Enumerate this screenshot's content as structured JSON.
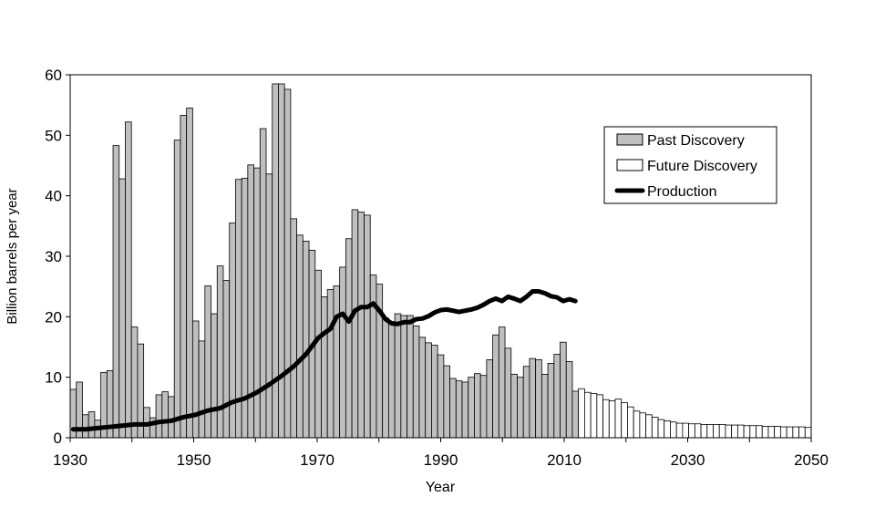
{
  "chart_data": {
    "type": "bar",
    "xlabel": "Year",
    "ylabel": "Billion barrels per year",
    "xlim": [
      1930,
      2050
    ],
    "ylim": [
      0,
      60
    ],
    "x_ticks": [
      "1930",
      "1950",
      "1970",
      "1990",
      "2010",
      "2030",
      "2050"
    ],
    "y_ticks": [
      "0",
      "10",
      "20",
      "30",
      "40",
      "50",
      "60"
    ],
    "legend_position": "top-right",
    "legend": [
      {
        "label": "Past Discovery",
        "kind": "bar",
        "fill": "#bfbfbf"
      },
      {
        "label": "Future Discovery",
        "kind": "bar",
        "fill": "#ffffff"
      },
      {
        "label": "Production",
        "kind": "line",
        "color": "#000000"
      }
    ],
    "colors": {
      "past": "#bfbfbf",
      "future": "#ffffff",
      "production": "#000000",
      "outline": "#000000"
    },
    "series": [
      {
        "name": "Past Discovery",
        "type": "bar",
        "x": [
          1930,
          1931,
          1932,
          1933,
          1934,
          1935,
          1936,
          1937,
          1938,
          1939,
          1940,
          1941,
          1942,
          1943,
          1944,
          1945,
          1946,
          1947,
          1948,
          1949,
          1950,
          1951,
          1952,
          1953,
          1954,
          1955,
          1956,
          1957,
          1958,
          1959,
          1960,
          1961,
          1962,
          1963,
          1964,
          1965,
          1966,
          1967,
          1968,
          1969,
          1970,
          1971,
          1972,
          1973,
          1974,
          1975,
          1976,
          1977,
          1978,
          1979,
          1980,
          1981,
          1982,
          1983,
          1984,
          1985,
          1986,
          1987,
          1988,
          1989,
          1990,
          1991,
          1992,
          1993,
          1994,
          1995,
          1996,
          1997,
          1998,
          1999,
          2000,
          2001,
          2002,
          2003,
          2004,
          2005,
          2006,
          2007,
          2008,
          2009,
          2010,
          2011,
          2012
        ],
        "values": [
          8,
          9.2,
          3.8,
          4.3,
          2.9,
          10.8,
          11.1,
          48.3,
          42.8,
          52.2,
          18.3,
          15.5,
          5,
          3.3,
          7.1,
          7.6,
          6.8,
          49.2,
          53.3,
          54.5,
          19.3,
          16,
          25.1,
          20.5,
          28.4,
          26,
          35.5,
          42.7,
          42.9,
          45.1,
          44.6,
          51.1,
          43.6,
          58.5,
          58.5,
          57.6,
          36.2,
          33.5,
          32.5,
          31,
          27.7,
          23.3,
          24.5,
          25.1,
          28.2,
          32.9,
          37.7,
          37.3,
          36.8,
          26.9,
          25.4,
          19.8,
          19.2,
          20.5,
          20.2,
          20.2,
          18.5,
          16.6,
          15.7,
          15.3,
          13.7,
          11.9,
          9.8,
          9.4,
          9.2,
          10,
          10.6,
          10.3,
          12.9,
          17,
          18.3,
          14.8,
          10.5,
          10,
          11.8,
          13.1,
          12.9,
          10.5,
          12.3,
          13.8,
          15.8,
          12.6,
          7.7
        ]
      },
      {
        "name": "Future Discovery",
        "type": "bar",
        "x": [
          2013,
          2014,
          2015,
          2016,
          2017,
          2018,
          2019,
          2020,
          2021,
          2022,
          2023,
          2024,
          2025,
          2026,
          2027,
          2028,
          2029,
          2030,
          2031,
          2032,
          2033,
          2034,
          2035,
          2036,
          2037,
          2038,
          2039,
          2040,
          2041,
          2042,
          2043,
          2044,
          2045,
          2046,
          2047,
          2048,
          2049,
          2050
        ],
        "values": [
          8.1,
          7.5,
          7.3,
          7.1,
          6.3,
          6.1,
          6.4,
          5.8,
          5.1,
          4.4,
          4.1,
          3.8,
          3.4,
          3.0,
          2.8,
          2.6,
          2.4,
          2.4,
          2.3,
          2.3,
          2.2,
          2.2,
          2.2,
          2.2,
          2.1,
          2.1,
          2.1,
          2.0,
          2.0,
          2.0,
          1.9,
          1.9,
          1.9,
          1.8,
          1.8,
          1.8,
          1.8,
          1.7
        ]
      },
      {
        "name": "Production",
        "type": "line",
        "x": [
          1930,
          1932,
          1934,
          1936,
          1938,
          1940,
          1942,
          1944,
          1946,
          1948,
          1950,
          1952,
          1954,
          1956,
          1958,
          1960,
          1962,
          1964,
          1966,
          1968,
          1970,
          1971,
          1972,
          1973,
          1974,
          1975,
          1976,
          1977,
          1978,
          1979,
          1980,
          1981,
          1982,
          1983,
          1984,
          1985,
          1986,
          1987,
          1988,
          1989,
          1990,
          1991,
          1992,
          1993,
          1994,
          1995,
          1996,
          1997,
          1998,
          1999,
          2000,
          2001,
          2002,
          2003,
          2004,
          2005,
          2006,
          2007,
          2008,
          2009,
          2010,
          2011,
          2012
        ],
        "values": [
          1.4,
          1.4,
          1.6,
          1.8,
          2.0,
          2.2,
          2.2,
          2.6,
          2.8,
          3.4,
          3.8,
          4.5,
          4.9,
          5.9,
          6.5,
          7.5,
          8.8,
          10.2,
          11.8,
          13.8,
          16.5,
          17.3,
          18.0,
          20.0,
          20.5,
          19.2,
          21.0,
          21.6,
          21.6,
          22.2,
          21.0,
          19.6,
          18.9,
          18.8,
          19.1,
          19.1,
          19.6,
          19.7,
          20.1,
          20.7,
          21.1,
          21.2,
          21.0,
          20.8,
          21.0,
          21.2,
          21.5,
          22.0,
          22.6,
          23.0,
          22.6,
          23.3,
          23.0,
          22.6,
          23.3,
          24.2,
          24.2,
          23.9,
          23.4,
          23.2,
          22.6,
          22.9,
          22.6
        ]
      }
    ]
  }
}
